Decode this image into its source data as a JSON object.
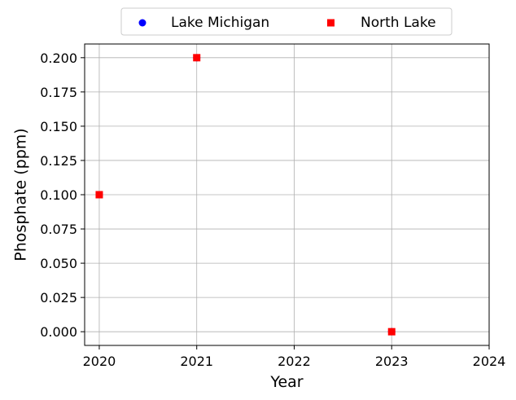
{
  "chart_data": {
    "type": "scatter",
    "title": "",
    "xlabel": "Year",
    "ylabel": "Phosphate (ppm)",
    "xlim": [
      2019.85,
      2024
    ],
    "ylim": [
      -0.01,
      0.21
    ],
    "xticks": [
      "2020",
      "2021",
      "2022",
      "2023",
      "2024"
    ],
    "yticks": [
      "0.000",
      "0.025",
      "0.050",
      "0.075",
      "0.100",
      "0.125",
      "0.150",
      "0.175",
      "0.200"
    ],
    "grid": true,
    "legend_position": "top-center",
    "series": [
      {
        "name": "Lake Michigan",
        "marker": "circle",
        "color": "#0000ff",
        "x": [
          2020,
          2021,
          2023
        ],
        "y": [
          0.1,
          0.2,
          0.0
        ]
      },
      {
        "name": "North Lake",
        "marker": "square",
        "color": "#ff0000",
        "x": [
          2020,
          2021,
          2023
        ],
        "y": [
          0.1,
          0.2,
          0.0
        ]
      }
    ]
  }
}
